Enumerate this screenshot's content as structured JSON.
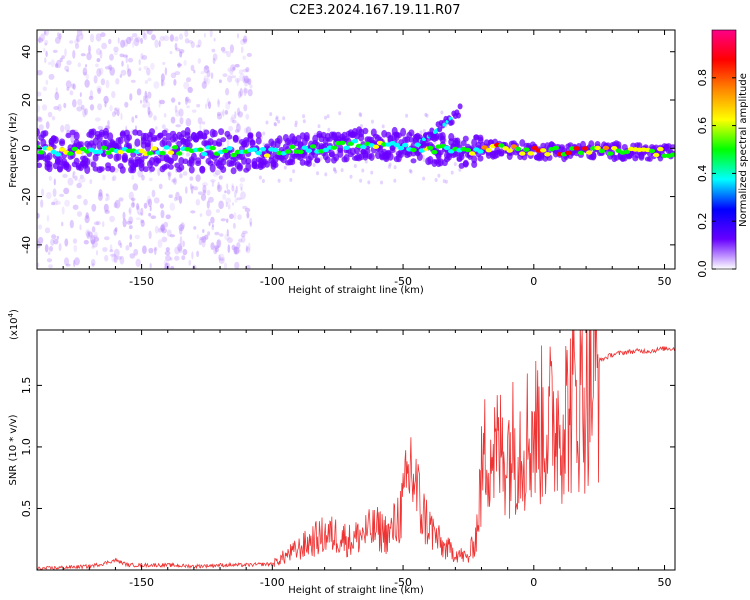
{
  "figure": {
    "title": "C2E3.2024.167.19.11.R07"
  },
  "chart_data": [
    {
      "type": "heatmap",
      "xlabel": "Height of straight line (km)",
      "ylabel": "Frequency (Hz)",
      "xlim": [
        -190,
        54
      ],
      "ylim": [
        -50,
        49
      ],
      "xticks": [
        -150,
        -100,
        -50,
        0,
        50
      ],
      "xtick_labels": [
        "-150",
        "-100",
        "-50",
        "0",
        "50"
      ],
      "yticks": [
        -40,
        -20,
        0,
        20,
        40
      ],
      "ytick_labels": [
        "-40",
        "-20",
        "0",
        "20",
        "40"
      ],
      "ridge": {
        "x": [
          -190,
          -160,
          -140,
          -120,
          -105,
          -95,
          -80,
          -65,
          -50,
          -40,
          -30,
          -25,
          -20,
          -15,
          0,
          25,
          54
        ],
        "y": [
          -1,
          -1,
          -1,
          -1,
          -2,
          -1,
          0,
          2,
          1,
          0,
          -1,
          -2,
          0,
          0,
          -1,
          -1,
          -2
        ]
      },
      "branch": {
        "x": [
          -45,
          -40,
          -35,
          -30,
          -28
        ],
        "y": [
          2,
          5,
          9,
          14,
          16
        ]
      },
      "colorbar": {
        "label": "Normalized spectral amplitude",
        "range": [
          0,
          1
        ],
        "ticks": [
          0.0,
          0.2,
          0.4,
          0.6,
          0.8
        ],
        "tick_labels": [
          "0.0",
          "0.2",
          "0.4",
          "0.6",
          "0.8"
        ],
        "colormap": [
          "#ffffff",
          "#6600ff",
          "#0000ff",
          "#00ffff",
          "#00ff00",
          "#ffff00",
          "#ff8800",
          "#ff0000",
          "#ff0088"
        ]
      }
    },
    {
      "type": "line",
      "xlabel": "Height of straight line (km)",
      "ylabel": "SNR (10 * v/v)",
      "y_multiplier_label": "(x10",
      "y_multiplier_exp": "4",
      "y_multiplier_close": ")",
      "xlim": [
        -190,
        54
      ],
      "ylim": [
        0,
        1.95
      ],
      "xticks": [
        -150,
        -100,
        -50,
        0,
        50
      ],
      "xtick_labels": [
        "-150",
        "-100",
        "-50",
        "0",
        "50"
      ],
      "yticks": [
        0.5,
        1.0,
        1.5
      ],
      "ytick_labels": [
        "0.5",
        "1.0",
        "1.5"
      ],
      "color": "#ee3333",
      "series": [
        {
          "x": [
            -190,
            -180,
            -170,
            -165,
            -160,
            -155,
            -150,
            -140,
            -130,
            -120,
            -110,
            -100,
            -95,
            -90,
            -85,
            -80,
            -75,
            -70,
            -65,
            -60,
            -55,
            -50,
            -47,
            -45,
            -43,
            -40,
            -35,
            -30,
            -25,
            -22,
            -20,
            -18,
            -15,
            -10,
            -5,
            0,
            5,
            10,
            15,
            20,
            22,
            25,
            30,
            35,
            40,
            45,
            50,
            54
          ],
          "y": [
            0.01,
            0.02,
            0.03,
            0.05,
            0.08,
            0.04,
            0.04,
            0.04,
            0.03,
            0.04,
            0.04,
            0.05,
            0.12,
            0.18,
            0.25,
            0.3,
            0.3,
            0.25,
            0.32,
            0.35,
            0.3,
            0.55,
            0.9,
            0.7,
            0.5,
            0.38,
            0.2,
            0.15,
            0.1,
            0.3,
            0.8,
            1.1,
            1.0,
            1.05,
            1.1,
            1.2,
            1.25,
            1.3,
            1.45,
            1.55,
            1.65,
            1.7,
            1.75,
            1.77,
            1.78,
            1.78,
            1.8,
            1.8
          ]
        }
      ]
    }
  ]
}
